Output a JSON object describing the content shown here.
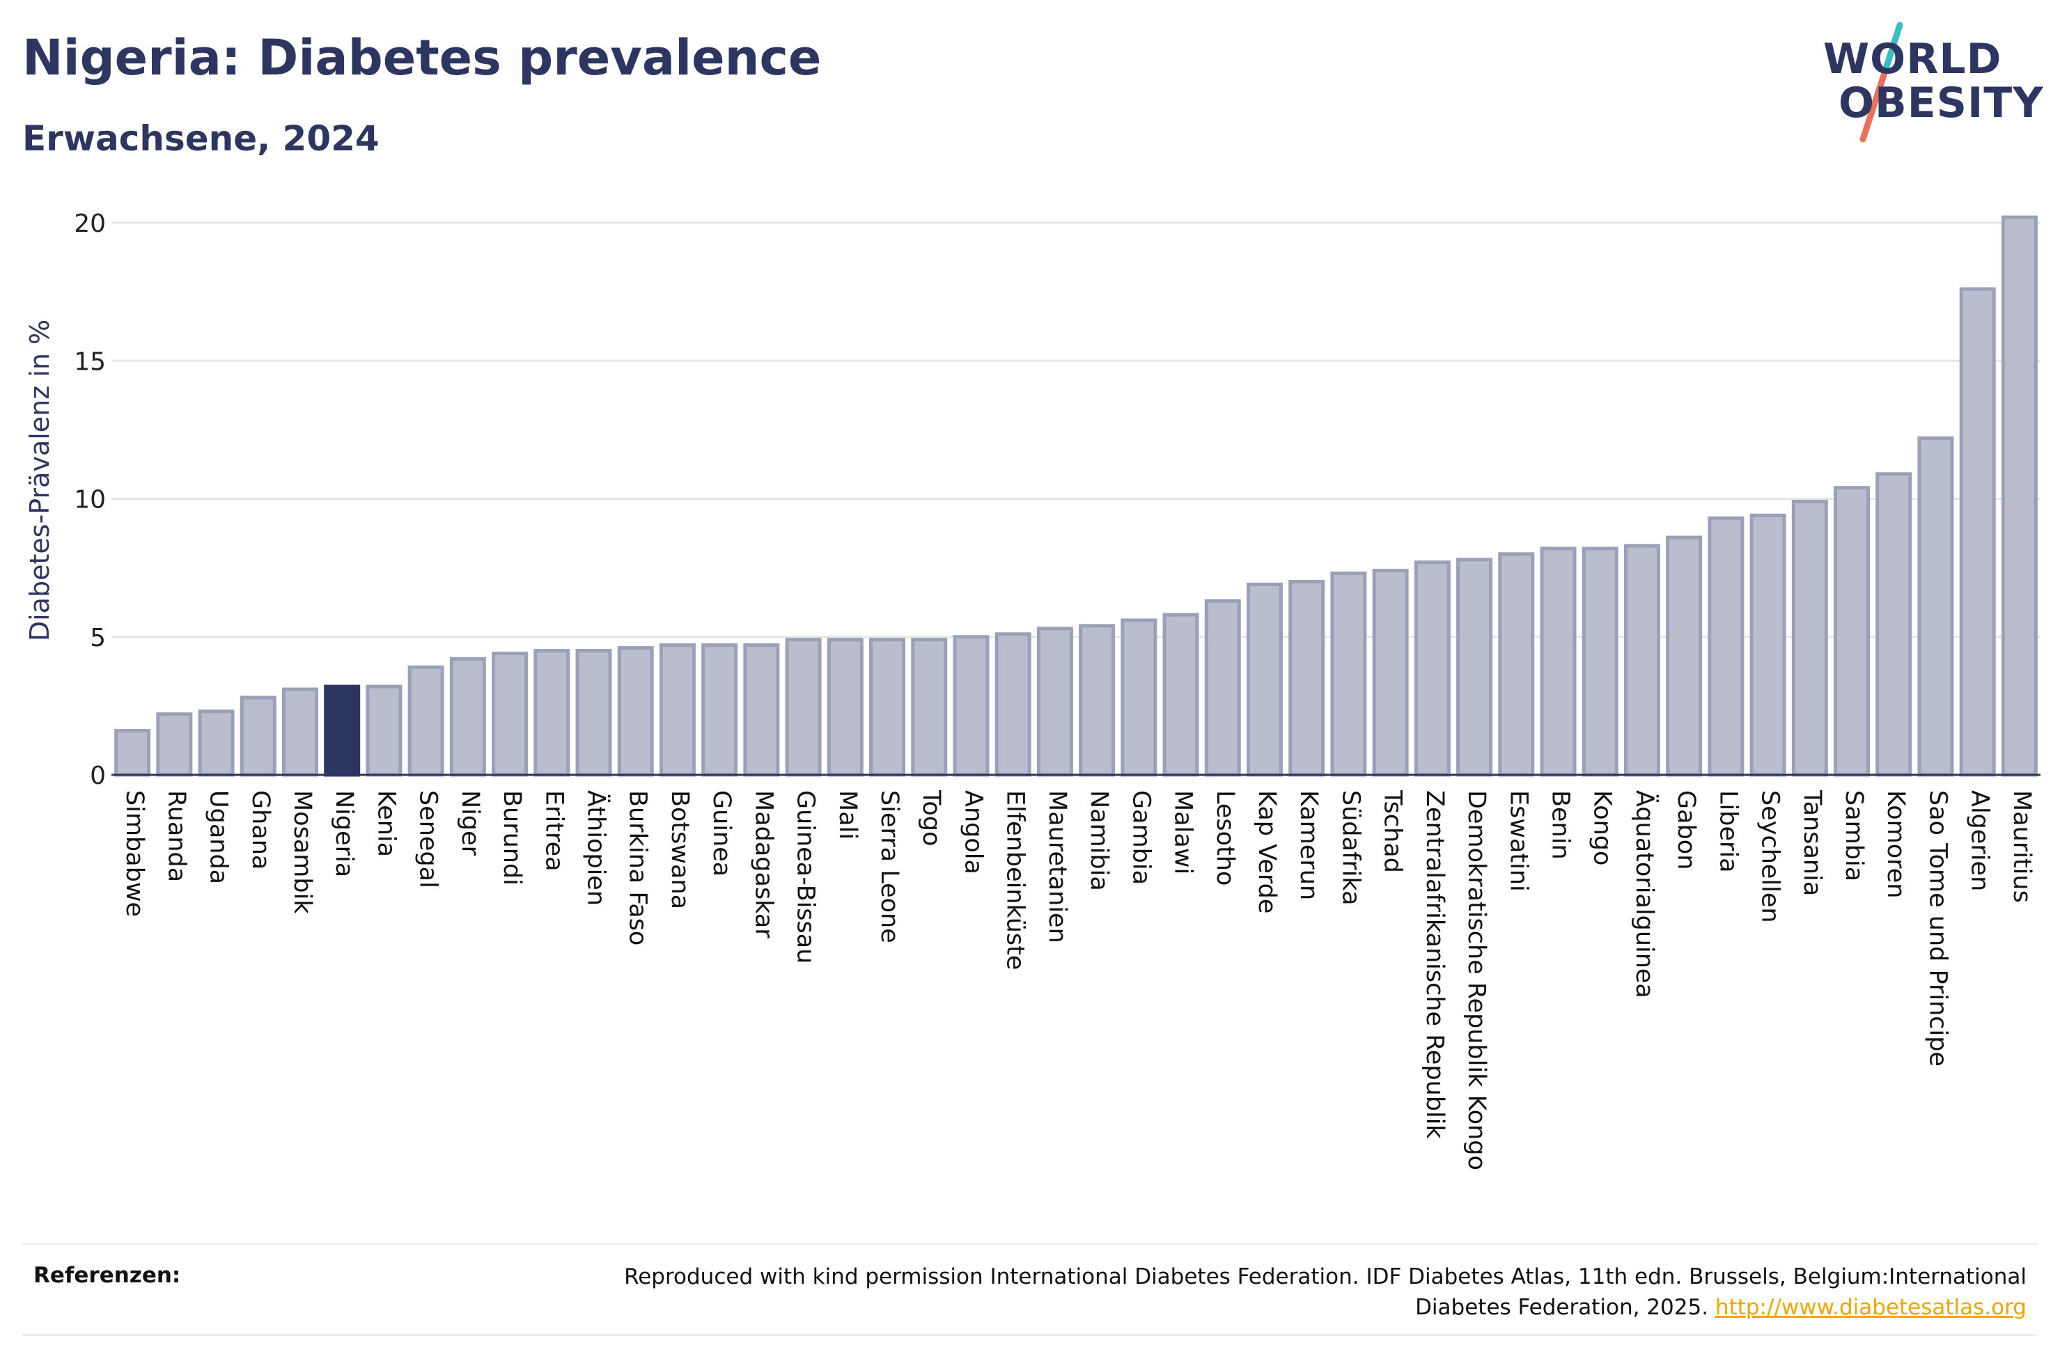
{
  "header": {
    "title": "Nigeria: Diabetes prevalence",
    "subtitle": "Erwachsene, 2024"
  },
  "logo": {
    "line1": "WORLD",
    "line2": "OBESITY",
    "slash_colors": [
      "#3bbdc4",
      "#e8705c"
    ]
  },
  "colors": {
    "bar_fill": "#b9bdcc",
    "bar_stroke": "#9aa0b8",
    "highlight_fill": "#2c3660",
    "axis": "#2c3660",
    "grid": "#e6e6e6",
    "text": "#2c3660",
    "link": "#f0a500"
  },
  "chart_data": {
    "type": "bar",
    "ylabel": "Diabetes-Prävalenz in %",
    "xlabel": "",
    "ylim": [
      0,
      20
    ],
    "yticks": [
      "0",
      "5",
      "10",
      "15",
      "20"
    ],
    "grid": true,
    "highlight": "Nigeria",
    "categories": [
      "Simbabwe",
      "Ruanda",
      "Uganda",
      "Ghana",
      "Mosambik",
      "Nigeria",
      "Kenia",
      "Senegal",
      "Niger",
      "Burundi",
      "Eritrea",
      "Äthiopien",
      "Burkina Faso",
      "Botswana",
      "Guinea",
      "Madagaskar",
      "Guinea-Bissau",
      "Mali",
      "Sierra Leone",
      "Togo",
      "Angola",
      "Elfenbeinküste",
      "Mauretanien",
      "Namibia",
      "Gambia",
      "Malawi",
      "Lesotho",
      "Kap Verde",
      "Kamerun",
      "Südafrika",
      "Tschad",
      "Zentralafrikanische Republik",
      "Demokratische Republik Kongo",
      "Eswatini",
      "Benin",
      "Kongo",
      "Äquatorialguinea",
      "Gabon",
      "Liberia",
      "Seychellen",
      "Tansania",
      "Sambia",
      "Komoren",
      "Sao Tome und Principe",
      "Algerien",
      "Mauritius"
    ],
    "values": [
      1.6,
      2.2,
      2.3,
      2.8,
      3.1,
      3.2,
      3.2,
      3.9,
      4.2,
      4.4,
      4.5,
      4.5,
      4.6,
      4.7,
      4.7,
      4.7,
      4.9,
      4.9,
      4.9,
      4.9,
      5.0,
      5.1,
      5.3,
      5.4,
      5.6,
      5.8,
      6.3,
      6.9,
      7.0,
      7.3,
      7.4,
      7.7,
      7.8,
      8.0,
      8.2,
      8.2,
      8.3,
      8.6,
      9.3,
      9.4,
      9.9,
      10.4,
      10.9,
      12.2,
      17.6,
      20.2
    ]
  },
  "footer": {
    "ref_label": "Referenzen:",
    "ref_text": "Reproduced with kind permission International Diabetes Federation. IDF Diabetes Atlas, 11th edn. Brussels, Belgium:International Diabetes Federation, 2025. ",
    "ref_link": "http://www.diabetesatlas.org"
  }
}
